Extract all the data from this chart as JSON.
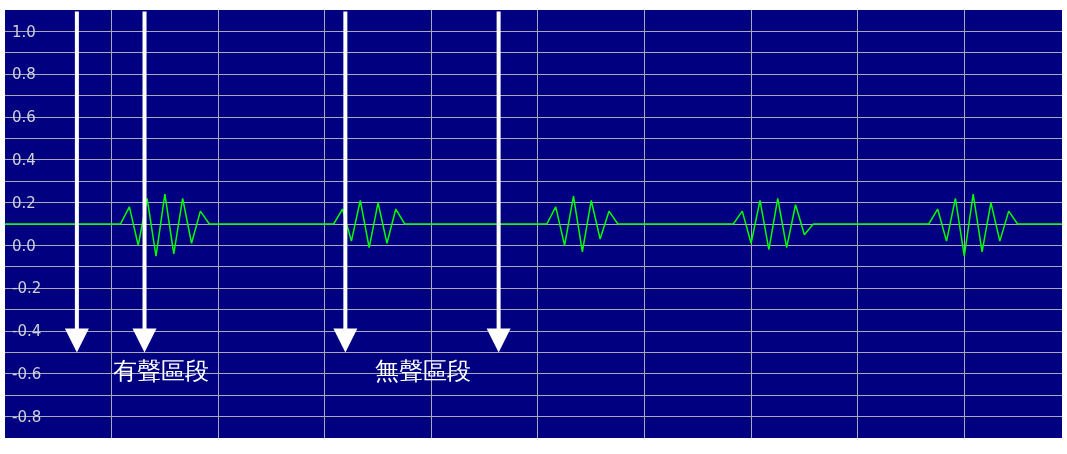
{
  "chart_data": {
    "type": "line",
    "categories": [
      null,
      null,
      null,
      null,
      null,
      null,
      null,
      null,
      null,
      null,
      null,
      null,
      null,
      null,
      null,
      null,
      null,
      null,
      null,
      null,
      null,
      null,
      null,
      null,
      null,
      null,
      null,
      null,
      null,
      null,
      null,
      null,
      null,
      null,
      null,
      null,
      null,
      null,
      null,
      null,
      null,
      null,
      null,
      null,
      null,
      null,
      null,
      null,
      null,
      null,
      null,
      null,
      null,
      null,
      null,
      null,
      null,
      null,
      null,
      null,
      null,
      null,
      null,
      null,
      null,
      null,
      null,
      null,
      null,
      null,
      null,
      null,
      null,
      null,
      null,
      null,
      null,
      null,
      null,
      null,
      null,
      null,
      null,
      null,
      null,
      null,
      null,
      null,
      null,
      null,
      null,
      null,
      null,
      null,
      null,
      null,
      null,
      null,
      null,
      null,
      null,
      null,
      null,
      null,
      null,
      null,
      null,
      null,
      null,
      null,
      null,
      null,
      null,
      null,
      null,
      null,
      null,
      null,
      null,
      null
    ],
    "series": [
      {
        "color": "#00ff00",
        "values": [
          0.1,
          0.1,
          0.1,
          0.1,
          0.1,
          0.1,
          0.1,
          0.1,
          0.1,
          0.1,
          0.1,
          0.1,
          0.1,
          0.1,
          0.18,
          0.0,
          0.22,
          -0.05,
          0.24,
          -0.04,
          0.22,
          0.01,
          0.16,
          0.1,
          0.1,
          0.1,
          0.1,
          0.1,
          0.1,
          0.1,
          0.1,
          0.1,
          0.1,
          0.1,
          0.1,
          0.1,
          0.1,
          0.1,
          0.17,
          0.02,
          0.21,
          -0.01,
          0.2,
          0.01,
          0.17,
          0.1,
          0.1,
          0.1,
          0.1,
          0.1,
          0.1,
          0.1,
          0.1,
          0.1,
          0.1,
          0.1,
          0.1,
          0.1,
          0.1,
          0.1,
          0.1,
          0.1,
          0.18,
          0.0,
          0.23,
          -0.03,
          0.21,
          0.03,
          0.16,
          0.1,
          0.1,
          0.1,
          0.1,
          0.1,
          0.1,
          0.1,
          0.1,
          0.1,
          0.1,
          0.1,
          0.1,
          0.1,
          0.1,
          0.16,
          0.01,
          0.21,
          -0.02,
          0.22,
          -0.01,
          0.19,
          0.05,
          0.1,
          0.1,
          0.1,
          0.1,
          0.1,
          0.1,
          0.1,
          0.1,
          0.1,
          0.1,
          0.1,
          0.1,
          0.1,
          0.1,
          0.17,
          0.02,
          0.22,
          -0.05,
          0.24,
          -0.03,
          0.2,
          0.02,
          0.16,
          0.1,
          0.1,
          0.1,
          0.1,
          0.1,
          0.1
        ]
      }
    ],
    "ylim": [
      -0.9,
      1.1
    ],
    "yticks": [
      {
        "value": 1.0,
        "label": "1.0"
      },
      {
        "value": 0.9,
        "label": null
      },
      {
        "value": 0.8,
        "label": "0.8"
      },
      {
        "value": 0.7,
        "label": null
      },
      {
        "value": 0.6,
        "label": "0.6"
      },
      {
        "value": 0.5,
        "label": null
      },
      {
        "value": 0.4,
        "label": "0.4"
      },
      {
        "value": 0.3,
        "label": null
      },
      {
        "value": 0.2,
        "label": "0.2"
      },
      {
        "value": 0.1,
        "label": null
      },
      {
        "value": 0.0,
        "label": "0.0"
      },
      {
        "value": -0.1,
        "label": null
      },
      {
        "value": -0.2,
        "label": "-0.2"
      },
      {
        "value": -0.3,
        "label": null
      },
      {
        "value": -0.4,
        "label": "-0.4"
      },
      {
        "value": -0.5,
        "label": null
      },
      {
        "value": -0.6,
        "label": "-0.6"
      },
      {
        "value": -0.7,
        "label": null
      },
      {
        "value": -0.8,
        "label": "-0.8"
      }
    ],
    "grid": true,
    "annotations": [
      "有聲區段",
      "無聲區段"
    ]
  }
}
